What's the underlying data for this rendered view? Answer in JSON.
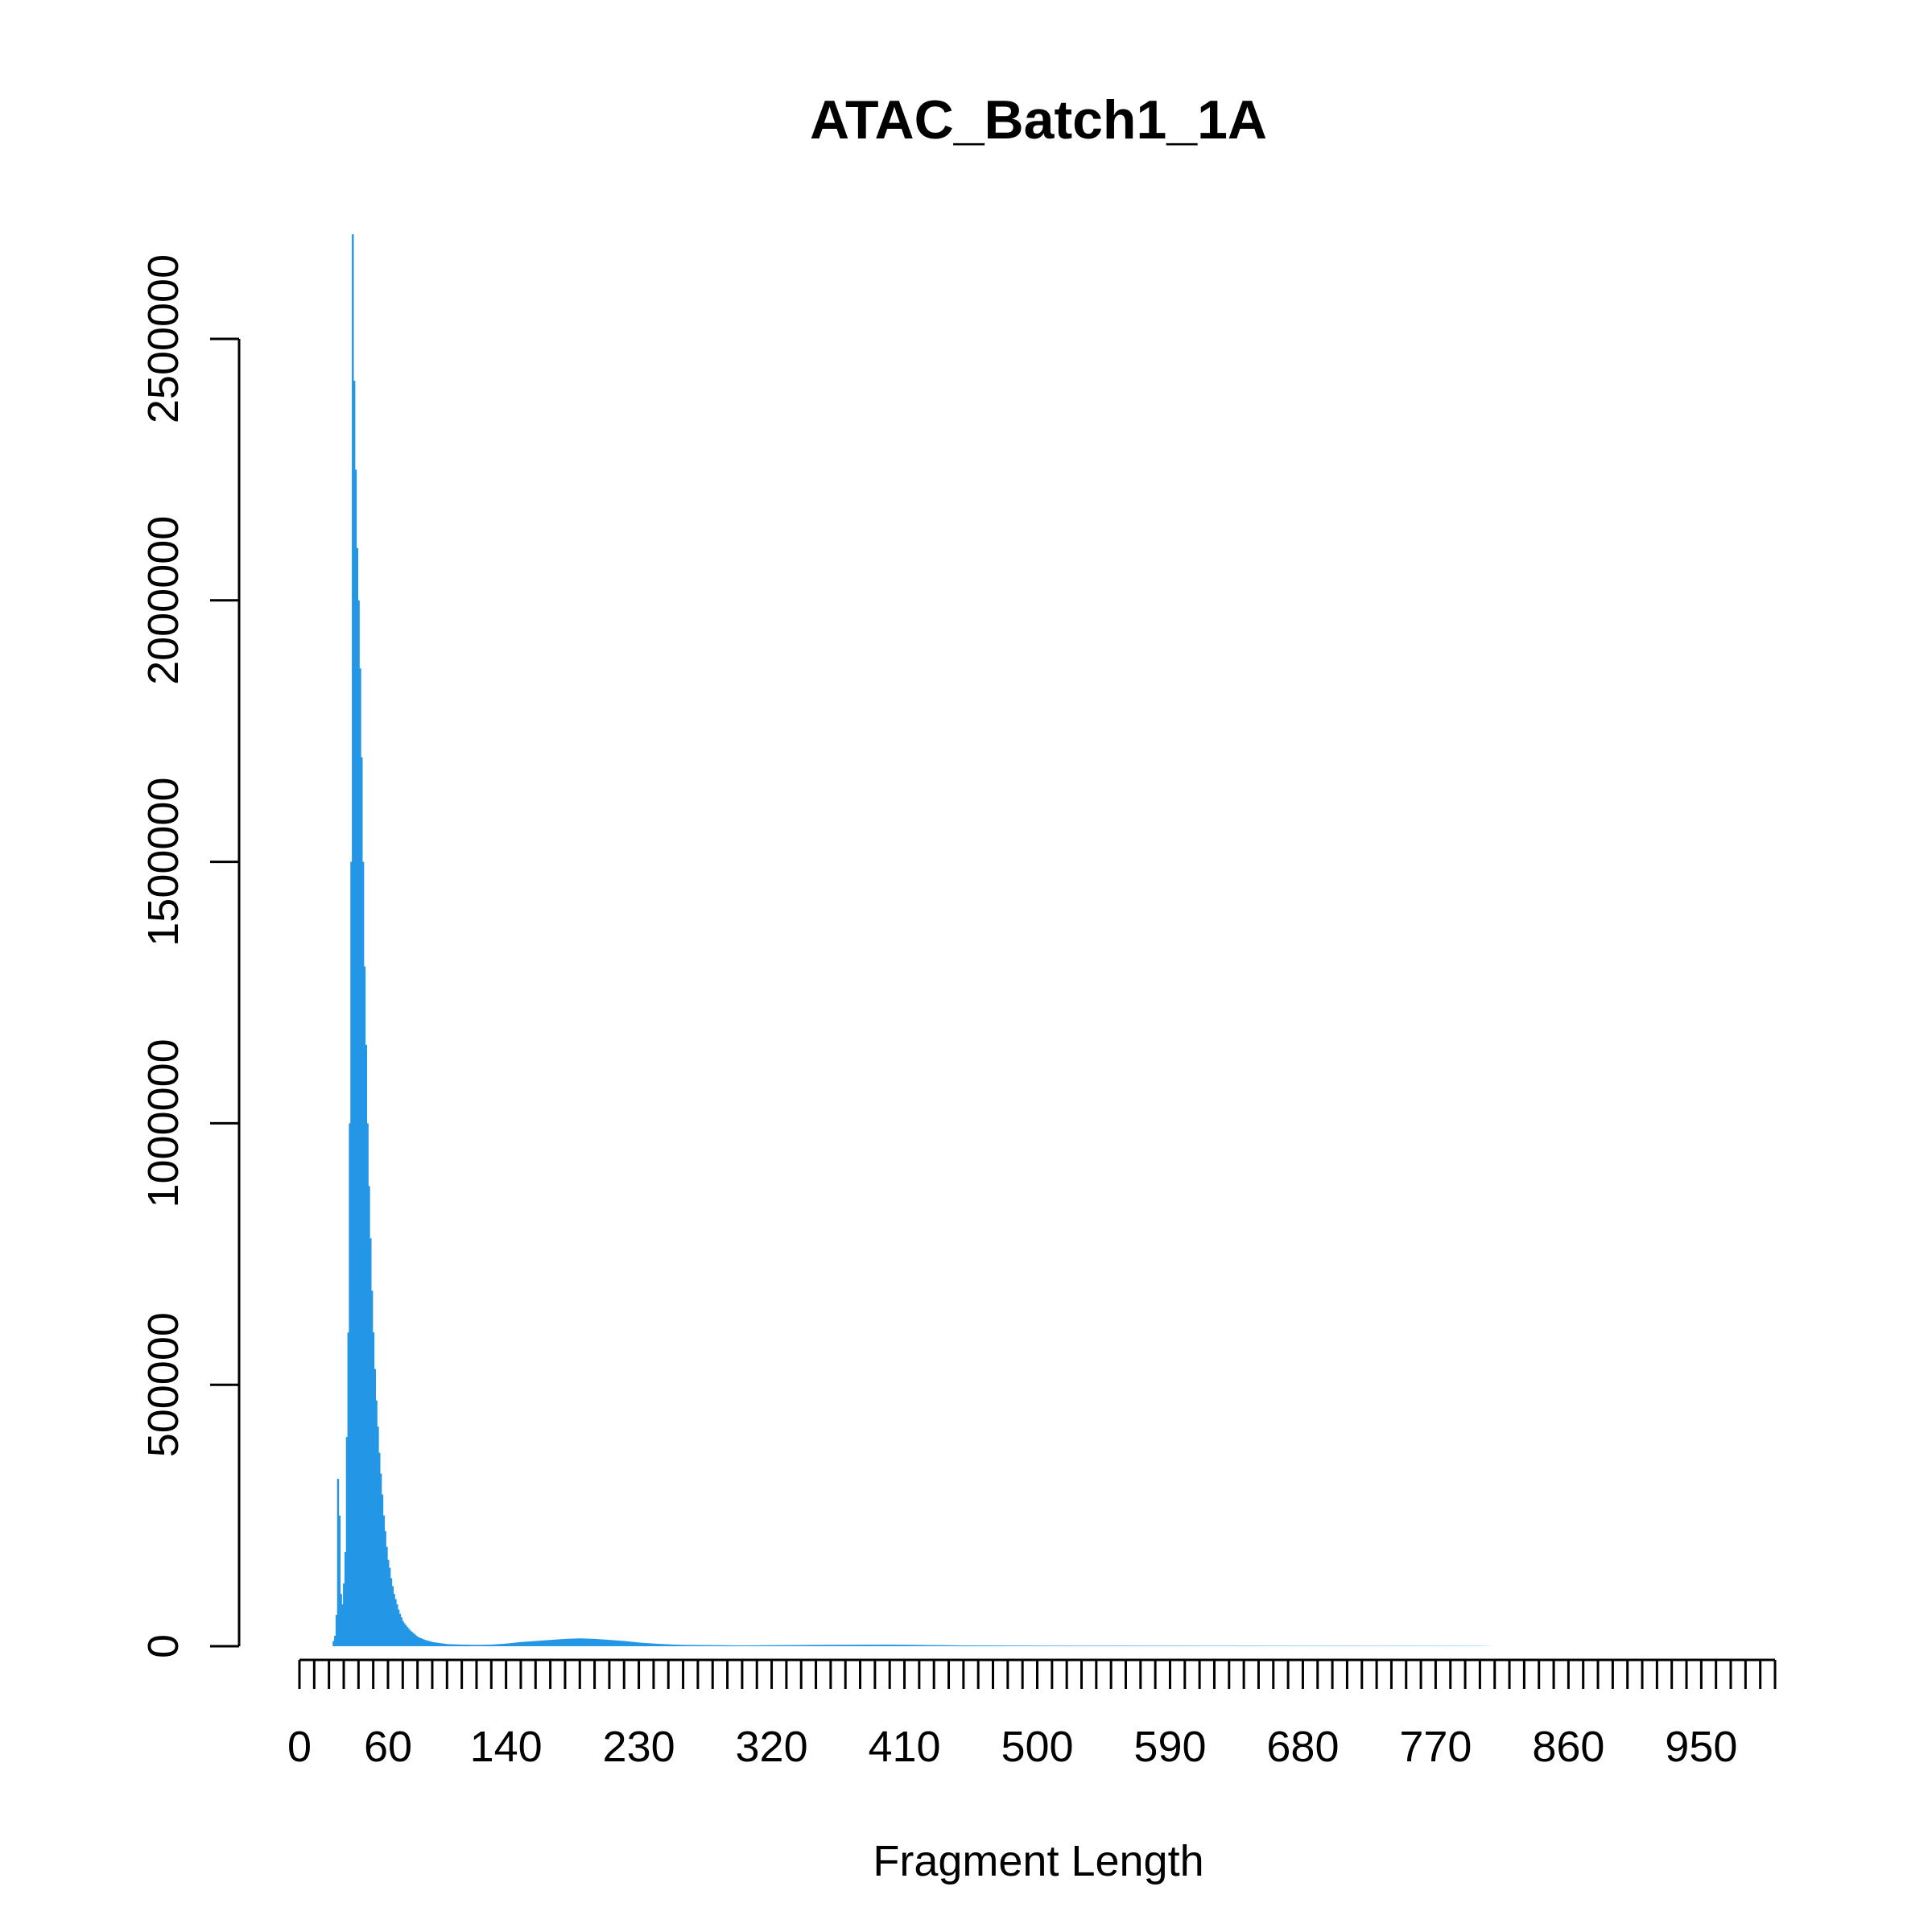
{
  "chart_data": {
    "type": "bar",
    "title": "ATAC_Batch1_1A",
    "xlabel": "Fragment Length",
    "ylabel": "",
    "bar_color": "#2496e6",
    "grid": false,
    "legend": "none",
    "xlim": [
      0,
      1000
    ],
    "ylim": [
      0,
      2700000
    ],
    "x_ticks_count": 101,
    "x_tick_labels": [
      "0",
      "60",
      "140",
      "230",
      "320",
      "410",
      "500",
      "590",
      "680",
      "770",
      "860",
      "950"
    ],
    "y_tick_labels": [
      "0",
      "500000",
      "1000000",
      "1500000",
      "2000000",
      "2500000"
    ],
    "series": [
      {
        "x": [
          23,
          24,
          25,
          26,
          27,
          28,
          29,
          30,
          31,
          32,
          33,
          34,
          35,
          36,
          37,
          38,
          39,
          40,
          41,
          42,
          43,
          44,
          45,
          46,
          47,
          48,
          49,
          50,
          51,
          52,
          53,
          54,
          55,
          56,
          57,
          58,
          59,
          60,
          61,
          62,
          63,
          64,
          65,
          66,
          67,
          68,
          69,
          70,
          72,
          75,
          80,
          85,
          90,
          100,
          110,
          120,
          130,
          140,
          150,
          160,
          170,
          180,
          190,
          200,
          210,
          220,
          230,
          240,
          250,
          260,
          280,
          300,
          350,
          400,
          450,
          500,
          600,
          700,
          800,
          810
        ],
        "values": [
          10000,
          20000,
          60000,
          320000,
          250000,
          100000,
          80000,
          120000,
          180000,
          400000,
          600000,
          1000000,
          1500000,
          2700000,
          2420000,
          2250000,
          2100000,
          2000000,
          1870000,
          1700000,
          1500000,
          1300000,
          1150000,
          1000000,
          880000,
          780000,
          680000,
          600000,
          530000,
          470000,
          420000,
          370000,
          330000,
          290000,
          250000,
          220000,
          190000,
          165000,
          150000,
          130000,
          115000,
          100000,
          90000,
          80000,
          70000,
          62000,
          55000,
          48000,
          40000,
          30000,
          18000,
          12000,
          8000,
          4000,
          3000,
          2500,
          3000,
          5000,
          8000,
          10000,
          12000,
          14000,
          15000,
          14000,
          12000,
          10000,
          7000,
          5000,
          3500,
          2500,
          2000,
          1500,
          2500,
          3000,
          1500,
          1000,
          800,
          600,
          400,
          0
        ]
      }
    ]
  }
}
